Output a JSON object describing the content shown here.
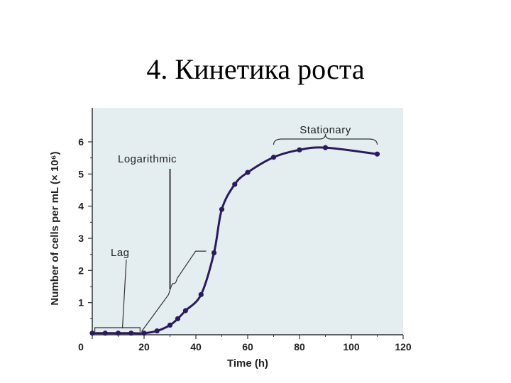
{
  "slide": {
    "title": "4. Кинетика роста"
  },
  "chart_data": {
    "type": "line",
    "title": "",
    "xlabel": "Time (h)",
    "ylabel": "Number of cells per mL (× 10⁶)",
    "xlim": [
      0,
      120
    ],
    "ylim": [
      0,
      6.5
    ],
    "x_ticks": [
      0,
      20,
      40,
      60,
      80,
      100,
      120
    ],
    "y_ticks": [
      1,
      2,
      3,
      4,
      5,
      6
    ],
    "grid": false,
    "legend": "none",
    "colors": {
      "plot_bg": "#e4eef0",
      "line": "#2b1a5c",
      "axis": "#333333"
    },
    "series": [
      {
        "name": "",
        "points": [
          [
            0,
            0.05
          ],
          [
            5,
            0.05
          ],
          [
            10,
            0.05
          ],
          [
            15,
            0.05
          ],
          [
            20,
            0.05
          ],
          [
            25,
            0.12
          ],
          [
            30,
            0.3
          ],
          [
            33,
            0.5
          ],
          [
            36,
            0.75
          ],
          [
            42,
            1.25
          ],
          [
            47,
            2.55
          ],
          [
            50,
            3.9
          ],
          [
            55,
            4.68
          ],
          [
            60,
            5.05
          ],
          [
            70,
            5.52
          ],
          [
            80,
            5.75
          ],
          [
            90,
            5.82
          ],
          [
            110,
            5.62
          ]
        ]
      }
    ],
    "annotations": [
      {
        "label": "Stationary",
        "type": "brace",
        "x_range": [
          70,
          110
        ]
      },
      {
        "label": "Logarithmic",
        "type": "pointer",
        "target": [
          30,
          1.6
        ]
      },
      {
        "label": "Lag",
        "type": "pointer",
        "target": [
          10,
          0.15
        ]
      }
    ]
  }
}
